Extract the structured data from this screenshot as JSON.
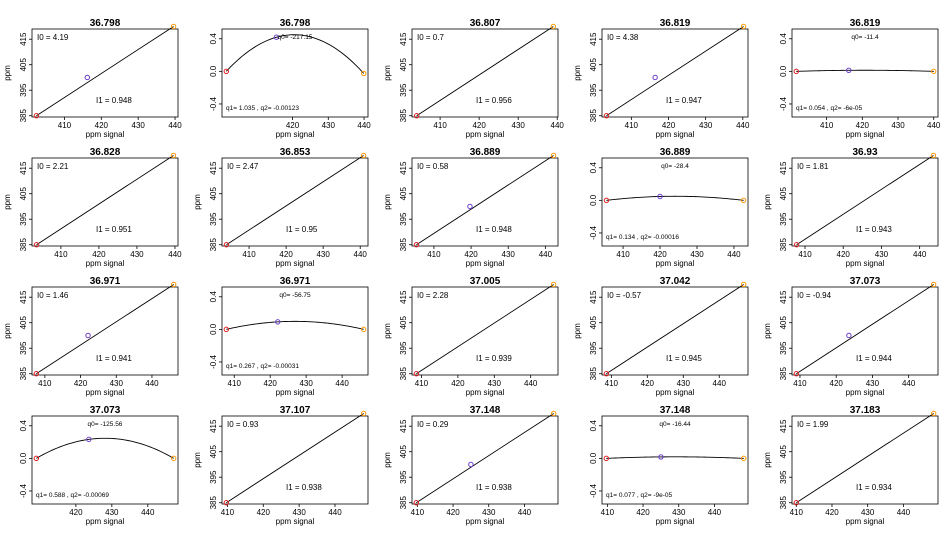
{
  "x_axis_label": "ppm signal",
  "linear_y_axis_label": "ppm",
  "colors": {
    "point_low": "#e31a1c",
    "point_mid": "#6a3dcc",
    "point_high": "#ff9900",
    "line": "#000000"
  },
  "chart_data": [
    {
      "type": "line",
      "kind": "linear",
      "title": "36.798",
      "x": [
        402.4,
        416.2,
        439.6
      ],
      "y": [
        385.0,
        400.0,
        420.0
      ],
      "mid_shown": true,
      "xticks": [
        410,
        420,
        430,
        440
      ],
      "yticks": [
        385,
        395,
        405,
        415
      ],
      "xlim": [
        401.2,
        440.8
      ],
      "ylim": [
        384.5,
        419.0
      ],
      "l0_text": "I0 =  4.19",
      "l1_text": "I1 =  0.948"
    },
    {
      "type": "line",
      "kind": "quadratic",
      "title": "36.798",
      "x": [
        401.5,
        415.5,
        439.9
      ],
      "y": [
        0.0,
        0.419,
        -0.025
      ],
      "mid_shown": true,
      "xticks": [
        420,
        430,
        440
      ],
      "yticks": [
        -0.4,
        0.0,
        0.4
      ],
      "xlim": [
        400.3,
        441.1
      ],
      "ylim": [
        -0.56,
        0.52
      ],
      "q0_text": "q0= -217.15",
      "q_text": "q1= 1.035 , q2= -0.00123"
    },
    {
      "type": "line",
      "kind": "linear",
      "title": "36.807",
      "x": [
        404.0,
        439.0
      ],
      "y": [
        385.0,
        420.0
      ],
      "mid_shown": false,
      "xticks": [
        410,
        420,
        430,
        440
      ],
      "yticks": [
        385,
        395,
        405,
        415
      ],
      "xlim": [
        402.8,
        440.2
      ],
      "ylim": [
        384.5,
        419.0
      ],
      "l0_text": "I0 =  0.7",
      "l1_text": "I1 =  0.956"
    },
    {
      "type": "line",
      "kind": "linear",
      "title": "36.819",
      "x": [
        403.3,
        416.4,
        440.2
      ],
      "y": [
        385.0,
        400.0,
        420.0
      ],
      "mid_shown": true,
      "xticks": [
        410,
        420,
        430,
        440
      ],
      "yticks": [
        385,
        395,
        405,
        415
      ],
      "xlim": [
        402.1,
        441.4
      ],
      "ylim": [
        384.5,
        419.0
      ],
      "l0_text": "I0 =  4.38",
      "l1_text": "I1 =  0.947"
    },
    {
      "type": "line",
      "kind": "quadratic",
      "title": "36.819",
      "x": [
        401.5,
        416.2,
        440.0
      ],
      "y": [
        0.0,
        0.013,
        0.0
      ],
      "mid_shown": true,
      "xticks": [
        410,
        420,
        430,
        440
      ],
      "yticks": [
        -0.4,
        0.0,
        0.4
      ],
      "xlim": [
        400.3,
        441.2
      ],
      "ylim": [
        -0.56,
        0.52
      ],
      "q0_text": "q0= -11.4",
      "q_text": "q1= 0.054 , q2= -6e-05"
    },
    {
      "type": "line",
      "kind": "linear",
      "title": "36.828",
      "x": [
        403.6,
        439.6
      ],
      "y": [
        385.0,
        420.0
      ],
      "mid_shown": false,
      "xticks": [
        410,
        420,
        430,
        440
      ],
      "yticks": [
        385,
        395,
        405,
        415
      ],
      "xlim": [
        402.4,
        440.8
      ],
      "ylim": [
        384.5,
        419.0
      ],
      "l0_text": "I0 =  2.21",
      "l1_text": "I1 =  0.951"
    },
    {
      "type": "line",
      "kind": "linear",
      "title": "36.853",
      "x": [
        403.9,
        440.9
      ],
      "y": [
        385.0,
        420.0
      ],
      "mid_shown": false,
      "xticks": [
        410,
        420,
        430,
        440
      ],
      "yticks": [
        385,
        395,
        405,
        415
      ],
      "xlim": [
        402.7,
        442.1
      ],
      "ylim": [
        384.5,
        419.0
      ],
      "l0_text": "I0 =  2.47",
      "l1_text": "I1 =  0.95"
    },
    {
      "type": "line",
      "kind": "linear",
      "title": "36.889",
      "x": [
        405.3,
        419.7,
        442.2
      ],
      "y": [
        385.0,
        400.0,
        420.0
      ],
      "mid_shown": true,
      "xticks": [
        410,
        420,
        430,
        440
      ],
      "yticks": [
        385,
        395,
        405,
        415
      ],
      "xlim": [
        404.1,
        443.4
      ],
      "ylim": [
        384.5,
        419.0
      ],
      "l0_text": "I0 =  0.58",
      "l1_text": "I1 =  0.948"
    },
    {
      "type": "line",
      "kind": "quadratic",
      "title": "36.889",
      "x": [
        405.5,
        420.0,
        442.6
      ],
      "y": [
        0.0,
        0.048,
        0.0
      ],
      "mid_shown": true,
      "xticks": [
        410,
        420,
        430,
        440
      ],
      "yticks": [
        -0.4,
        0.0,
        0.4
      ],
      "xlim": [
        404.3,
        443.8
      ],
      "ylim": [
        -0.56,
        0.52
      ],
      "q0_text": "q0= -28.4",
      "q_text": "q1= 0.134 , q2= -0.00016"
    },
    {
      "type": "line",
      "kind": "linear",
      "title": "36.93",
      "x": [
        407.8,
        443.6
      ],
      "y": [
        385.0,
        420.0
      ],
      "mid_shown": false,
      "xticks": [
        410,
        420,
        430,
        440
      ],
      "yticks": [
        385,
        395,
        405,
        415
      ],
      "xlim": [
        406.6,
        444.8
      ],
      "ylim": [
        384.5,
        419.0
      ],
      "l0_text": "I0 =  1.81",
      "l1_text": "I1 =  0.943"
    },
    {
      "type": "line",
      "kind": "linear",
      "title": "36.971",
      "x": [
        407.6,
        422.1,
        446.1
      ],
      "y": [
        385.0,
        400.0,
        420.0
      ],
      "mid_shown": true,
      "xticks": [
        410,
        420,
        430,
        440
      ],
      "yticks": [
        385,
        395,
        405,
        415
      ],
      "xlim": [
        406.4,
        447.3
      ],
      "ylim": [
        384.5,
        419.0
      ],
      "l0_text": "I0 =  1.46",
      "l1_text": "I1 =  0.941"
    },
    {
      "type": "line",
      "kind": "quadratic",
      "title": "36.971",
      "x": [
        407.8,
        422.1,
        446.0
      ],
      "y": [
        0.0,
        0.092,
        0.0
      ],
      "mid_shown": true,
      "xticks": [
        410,
        420,
        430,
        440
      ],
      "yticks": [
        -0.4,
        0.0,
        0.4
      ],
      "xlim": [
        406.6,
        447.2
      ],
      "ylim": [
        -0.56,
        0.52
      ],
      "q0_text": "q0= -56.75",
      "q_text": "q1= 0.267 , q2= -0.00031"
    },
    {
      "type": "line",
      "kind": "linear",
      "title": "37.005",
      "x": [
        408.6,
        446.3
      ],
      "y": [
        385.0,
        420.0
      ],
      "mid_shown": false,
      "xticks": [
        410,
        420,
        430,
        440
      ],
      "yticks": [
        385,
        395,
        405,
        415
      ],
      "xlim": [
        407.4,
        447.5
      ],
      "ylim": [
        384.5,
        419.0
      ],
      "l0_text": "I0 =  2.28",
      "l1_text": "I1 =  0.939"
    },
    {
      "type": "line",
      "kind": "linear",
      "title": "37.042",
      "x": [
        408.6,
        446.8
      ],
      "y": [
        385.0,
        420.0
      ],
      "mid_shown": false,
      "xticks": [
        410,
        420,
        430,
        440
      ],
      "yticks": [
        385,
        395,
        405,
        415
      ],
      "xlim": [
        407.4,
        448.0
      ],
      "ylim": [
        384.5,
        419.0
      ],
      "l0_text": "I0 =  -0.57",
      "l1_text": "I1 =  0.945"
    },
    {
      "type": "line",
      "kind": "linear",
      "title": "37.073",
      "x": [
        409.0,
        423.5,
        446.9
      ],
      "y": [
        385.0,
        400.0,
        420.0
      ],
      "mid_shown": true,
      "xticks": [
        410,
        420,
        430,
        440
      ],
      "yticks": [
        385,
        395,
        405,
        415
      ],
      "xlim": [
        407.8,
        448.1
      ],
      "ylim": [
        384.5,
        419.0
      ],
      "l0_text": "I0 =  -0.94",
      "l1_text": "I1 =  0.944"
    },
    {
      "type": "line",
      "kind": "quadratic",
      "title": "37.073",
      "x": [
        409.0,
        423.6,
        447.2
      ],
      "y": [
        0.0,
        0.233,
        0.0
      ],
      "mid_shown": true,
      "xticks": [
        420,
        430,
        440
      ],
      "yticks": [
        -0.4,
        0.0,
        0.4
      ],
      "xlim": [
        407.8,
        448.4
      ],
      "ylim": [
        -0.56,
        0.52
      ],
      "q0_text": "q0= -125.56",
      "q_text": "q1= 0.588 , q2= -0.00069"
    },
    {
      "type": "line",
      "kind": "linear",
      "title": "37.107",
      "x": [
        409.7,
        448.0
      ],
      "y": [
        385.0,
        420.0
      ],
      "mid_shown": false,
      "xticks": [
        410,
        420,
        430,
        440
      ],
      "yticks": [
        385,
        395,
        405,
        415
      ],
      "xlim": [
        408.5,
        449.2
      ],
      "ylim": [
        384.5,
        419.0
      ],
      "l0_text": "I0 =  0.93",
      "l1_text": "I1 =  0.938"
    },
    {
      "type": "line",
      "kind": "linear",
      "title": "37.148",
      "x": [
        409.7,
        425.0,
        448.2
      ],
      "y": [
        385.0,
        400.0,
        420.0
      ],
      "mid_shown": true,
      "xticks": [
        410,
        420,
        430,
        440
      ],
      "yticks": [
        385,
        395,
        405,
        415
      ],
      "xlim": [
        408.5,
        449.4
      ],
      "ylim": [
        384.5,
        419.0
      ],
      "l0_text": "I0 =  0.29",
      "l1_text": "I1 =  0.938"
    },
    {
      "type": "line",
      "kind": "quadratic",
      "title": "37.148",
      "x": [
        409.7,
        425.0,
        448.2
      ],
      "y": [
        0.0,
        0.018,
        0.0
      ],
      "mid_shown": true,
      "xticks": [
        410,
        420,
        430,
        440
      ],
      "yticks": [
        -0.4,
        0.0,
        0.4
      ],
      "xlim": [
        408.5,
        449.4
      ],
      "ylim": [
        -0.56,
        0.52
      ],
      "q0_text": "q0= -16.44",
      "q_text": "q1= 0.077 , q2= -9e-05"
    },
    {
      "type": "line",
      "kind": "linear",
      "title": "37.183",
      "x": [
        410.0,
        448.5
      ],
      "y": [
        385.0,
        420.0
      ],
      "mid_shown": false,
      "xticks": [
        410,
        420,
        430,
        440
      ],
      "yticks": [
        385,
        395,
        405,
        415
      ],
      "xlim": [
        408.8,
        449.7
      ],
      "ylim": [
        384.5,
        419.0
      ],
      "l0_text": "I0 =  1.99",
      "l1_text": "I1 =  0.934"
    }
  ]
}
